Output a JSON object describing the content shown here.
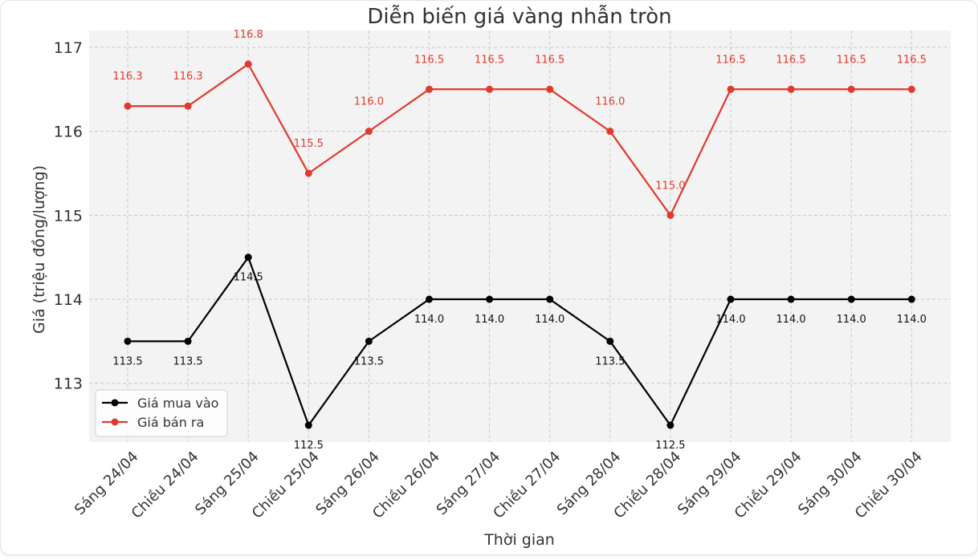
{
  "chart_data": {
    "type": "line",
    "title": "Diễn biến giá vàng nhẫn tròn",
    "xlabel": "Thời gian",
    "ylabel": "Giá (triệu đồng/lượng)",
    "categories": [
      "Sáng 24/04",
      "Chiều 24/04",
      "Sáng 25/04",
      "Chiều 25/04",
      "Sáng 26/04",
      "Chiều 26/04",
      "Sáng 27/04",
      "Chiều 27/04",
      "Sáng 28/04",
      "Chiều 28/04",
      "Sáng 29/04",
      "Chiều 29/04",
      "Sáng 30/04",
      "Chiều 30/04"
    ],
    "series": [
      {
        "name": "Giá mua vào",
        "color": "#000000",
        "label_position": "below",
        "values": [
          113.5,
          113.5,
          114.5,
          112.5,
          113.5,
          114.0,
          114.0,
          114.0,
          113.5,
          112.5,
          114.0,
          114.0,
          114.0,
          114.0
        ]
      },
      {
        "name": "Giá bán ra",
        "color": "#e03a2e",
        "label_position": "above",
        "values": [
          116.3,
          116.3,
          116.8,
          115.5,
          116.0,
          116.5,
          116.5,
          116.5,
          116.0,
          115.0,
          116.5,
          116.5,
          116.5,
          116.5
        ]
      }
    ],
    "yticks": [
      113,
      114,
      115,
      116,
      117
    ],
    "ylim": [
      112.3,
      117.2
    ],
    "grid": true,
    "legend": "lower-left",
    "plot_background": "#f3f3f3"
  }
}
